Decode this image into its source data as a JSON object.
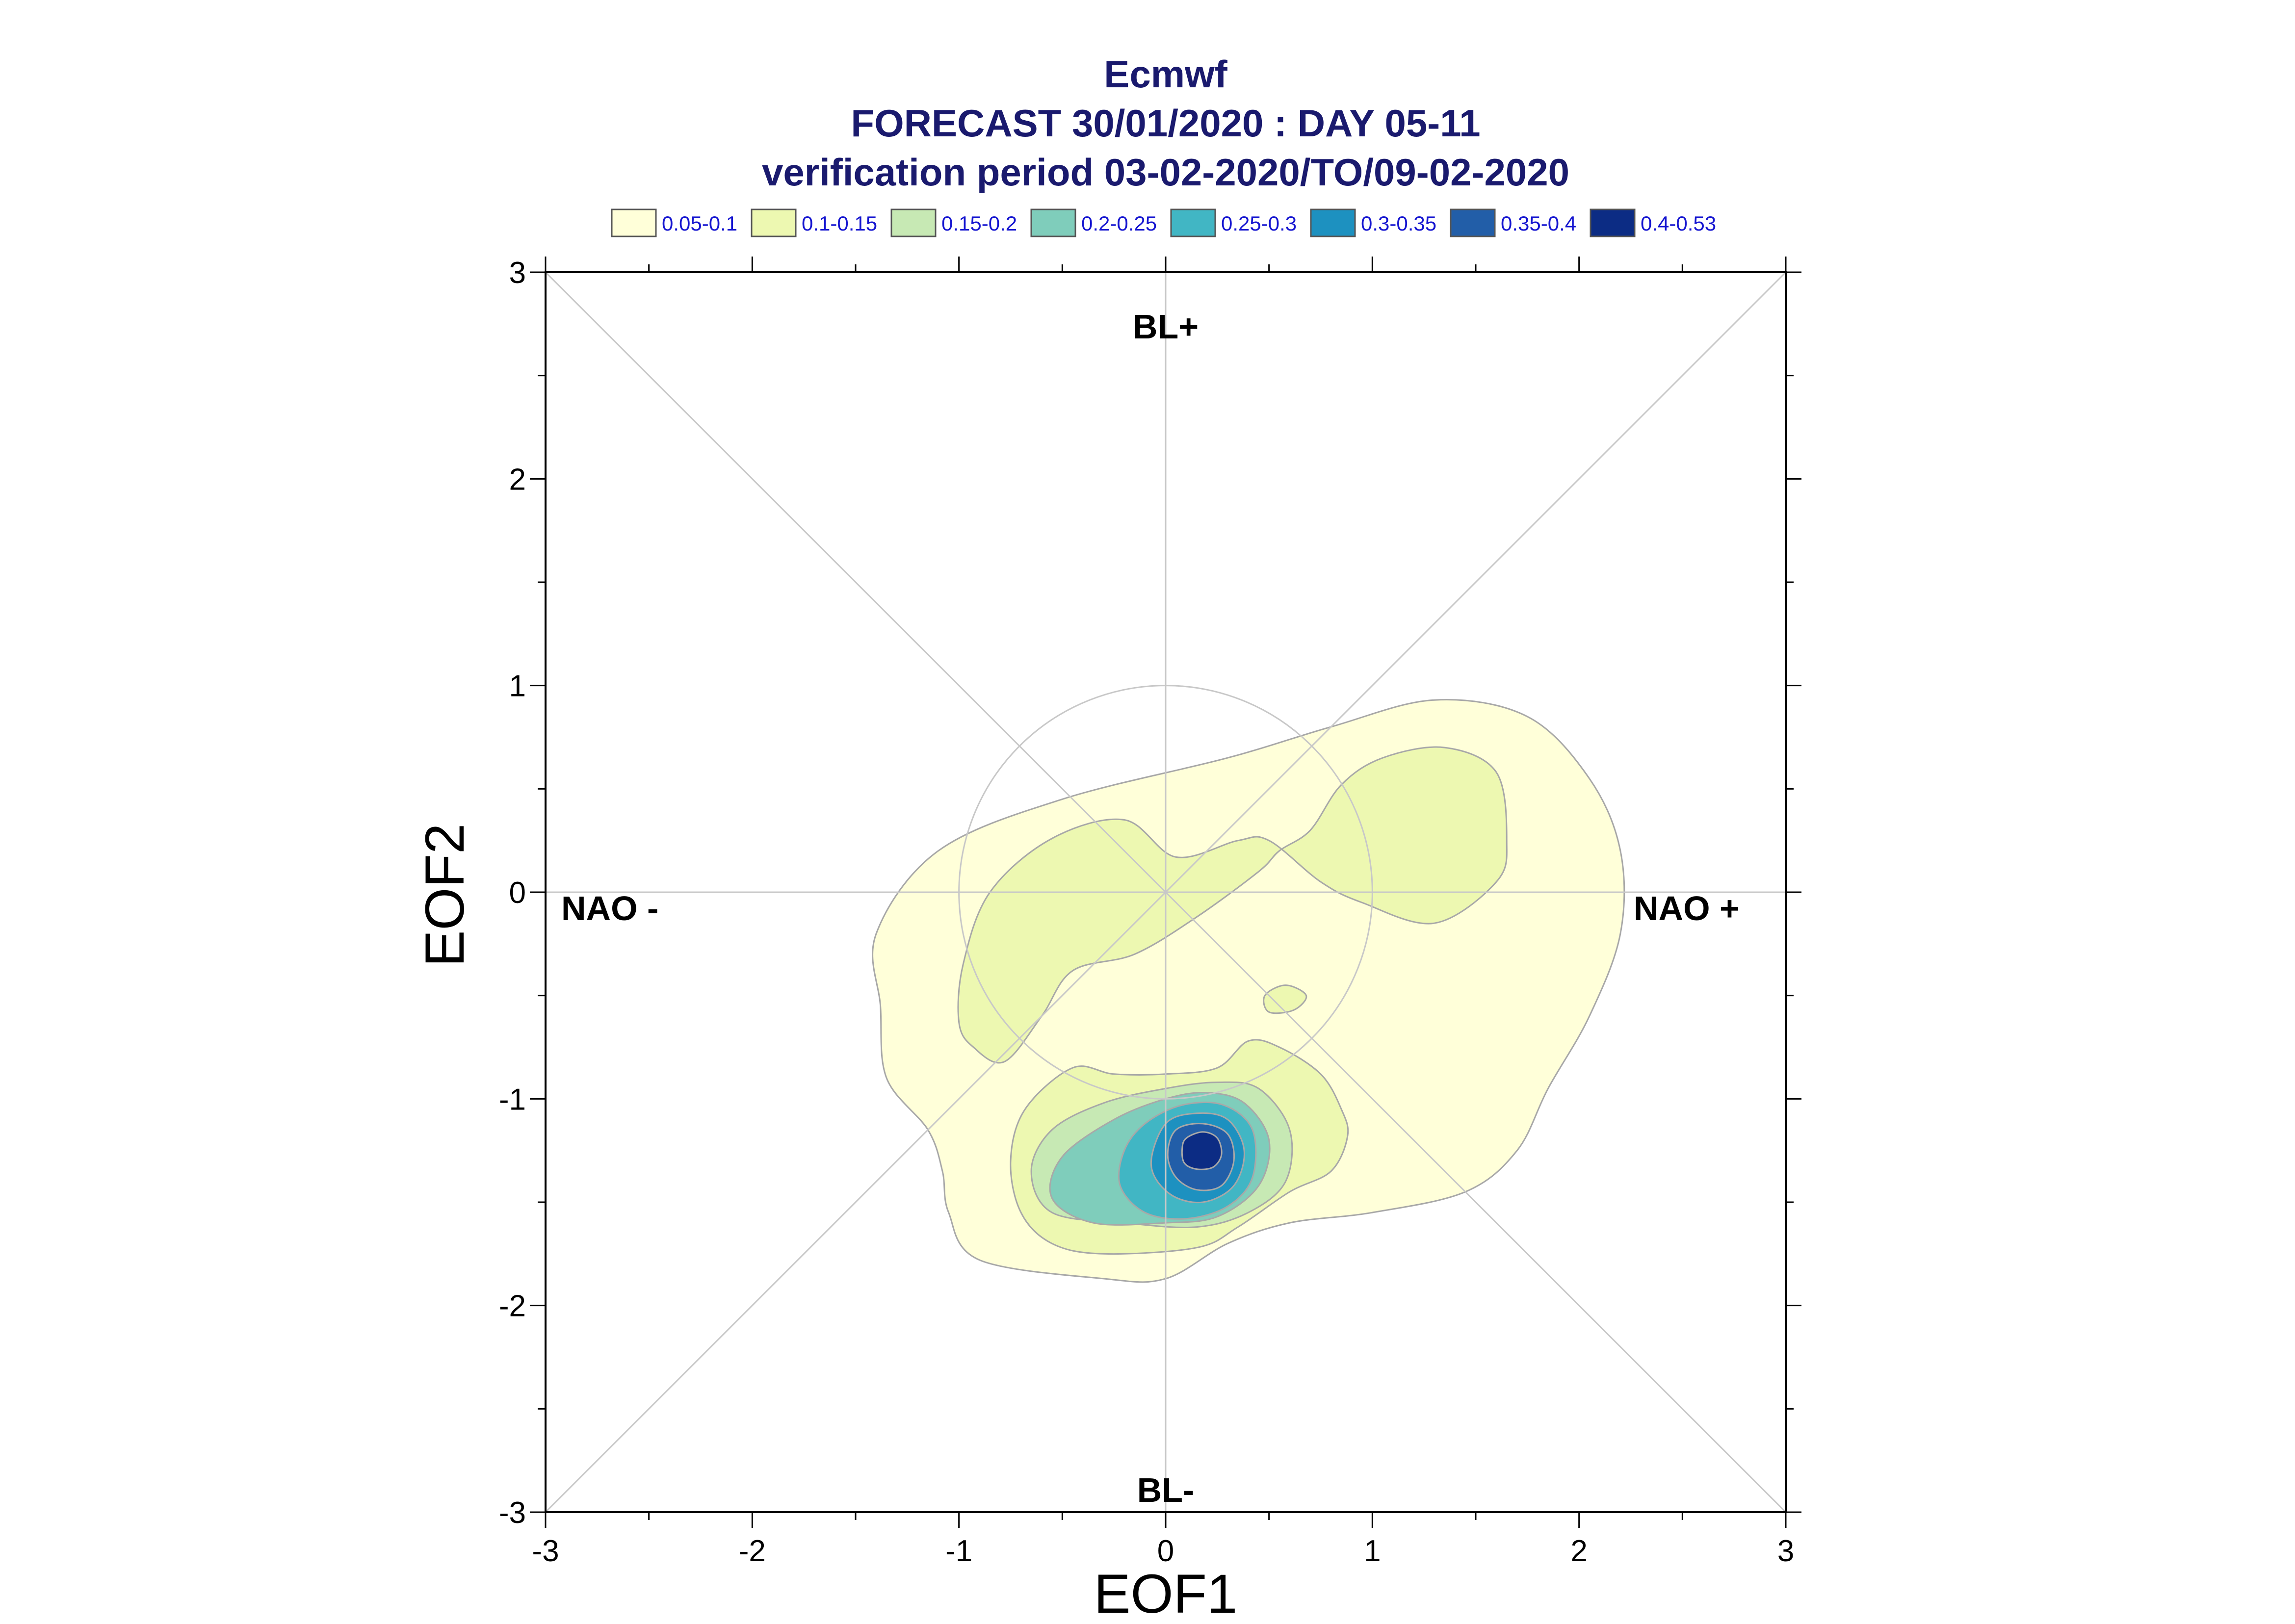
{
  "chart_data": {
    "type": "contour",
    "title_lines": [
      "Ecmwf",
      "FORECAST 30/01/2020 : DAY 05-11",
      "verification period 03-02-2020/TO/09-02-2020"
    ],
    "xlabel": "EOF1",
    "ylabel": "EOF2",
    "xlim": [
      -3,
      3
    ],
    "ylim": [
      -3,
      3
    ],
    "x_ticks": [
      "-3",
      "-2",
      "-1",
      "0",
      "1",
      "2",
      "3"
    ],
    "y_ticks": [
      "3",
      "2",
      "1",
      "0",
      "-1",
      "-2",
      "-3"
    ],
    "legend": [
      {
        "label": "0.05-0.1",
        "color": "#ffffd9"
      },
      {
        "label": "0.1-0.15",
        "color": "#edf8b1"
      },
      {
        "label": "0.15-0.2",
        "color": "#c7e9b4"
      },
      {
        "label": "0.2-0.25",
        "color": "#7fcdbb"
      },
      {
        "label": "0.25-0.3",
        "color": "#41b6c4"
      },
      {
        "label": "0.3-0.35",
        "color": "#1d91c0"
      },
      {
        "label": "0.35-0.4",
        "color": "#225ea8"
      },
      {
        "label": "0.4-0.53",
        "color": "#0c2c84"
      }
    ],
    "regime_labels": {
      "top": "BL+",
      "bottom": "BL-",
      "left": "NAO -",
      "right": "NAO +"
    },
    "reference_circle_radius": 1,
    "density_peak": {
      "x": 0.18,
      "y": -1.25,
      "value_range": "0.4-0.53"
    },
    "contours": [
      {
        "level": "0.05-0.1",
        "points": [
          [
            -1.4,
            -0.2
          ],
          [
            -1.1,
            0.2
          ],
          [
            -0.5,
            0.45
          ],
          [
            0.3,
            0.65
          ],
          [
            0.8,
            0.8
          ],
          [
            1.3,
            0.93
          ],
          [
            1.75,
            0.85
          ],
          [
            2.05,
            0.55
          ],
          [
            2.2,
            0.2
          ],
          [
            2.2,
            -0.2
          ],
          [
            2.05,
            -0.6
          ],
          [
            1.85,
            -0.95
          ],
          [
            1.7,
            -1.25
          ],
          [
            1.45,
            -1.45
          ],
          [
            1.0,
            -1.55
          ],
          [
            0.6,
            -1.6
          ],
          [
            0.3,
            -1.7
          ],
          [
            0.0,
            -1.87
          ],
          [
            -0.3,
            -1.87
          ],
          [
            -0.9,
            -1.78
          ],
          [
            -1.05,
            -1.55
          ],
          [
            -1.08,
            -1.35
          ],
          [
            -1.15,
            -1.15
          ],
          [
            -1.35,
            -0.9
          ],
          [
            -1.38,
            -0.55
          ]
        ]
      },
      {
        "level": "0.1-0.15",
        "points": [
          [
            -0.93,
            -0.75
          ],
          [
            -0.78,
            -0.82
          ],
          [
            -0.6,
            -0.6
          ],
          [
            -0.45,
            -0.38
          ],
          [
            -0.15,
            -0.3
          ],
          [
            0.15,
            -0.12
          ],
          [
            0.45,
            0.1
          ],
          [
            0.55,
            0.2
          ],
          [
            0.7,
            0.3
          ],
          [
            0.85,
            0.52
          ],
          [
            1.05,
            0.65
          ],
          [
            1.35,
            0.7
          ],
          [
            1.6,
            0.58
          ],
          [
            1.65,
            0.25
          ],
          [
            1.6,
            0.05
          ],
          [
            1.3,
            -0.15
          ],
          [
            0.95,
            -0.05
          ],
          [
            0.75,
            0.05
          ],
          [
            0.5,
            0.25
          ],
          [
            0.35,
            0.25
          ],
          [
            0.05,
            0.17
          ],
          [
            -0.2,
            0.35
          ],
          [
            -0.55,
            0.26
          ],
          [
            -0.85,
            0.0
          ],
          [
            -0.98,
            -0.35
          ],
          [
            -1.0,
            -0.63
          ]
        ]
      },
      {
        "level": "0.1-0.15",
        "points": [
          [
            0.48,
            -0.5
          ],
          [
            0.58,
            -0.45
          ],
          [
            0.68,
            -0.5
          ],
          [
            0.62,
            -0.57
          ],
          [
            0.5,
            -0.58
          ]
        ]
      },
      {
        "level": "0.1-0.15",
        "points": [
          [
            -0.45,
            -0.85
          ],
          [
            -0.25,
            -0.88
          ],
          [
            0.0,
            -0.88
          ],
          [
            0.25,
            -0.85
          ],
          [
            0.4,
            -0.72
          ],
          [
            0.55,
            -0.75
          ],
          [
            0.75,
            -0.88
          ],
          [
            0.85,
            -1.05
          ],
          [
            0.88,
            -1.18
          ],
          [
            0.8,
            -1.35
          ],
          [
            0.6,
            -1.45
          ],
          [
            0.35,
            -1.62
          ],
          [
            0.15,
            -1.72
          ],
          [
            -0.3,
            -1.75
          ],
          [
            -0.55,
            -1.7
          ],
          [
            -0.7,
            -1.55
          ],
          [
            -0.75,
            -1.3
          ],
          [
            -0.68,
            -1.05
          ]
        ]
      },
      {
        "level": "0.15-0.2",
        "points": [
          [
            -0.3,
            -1.02
          ],
          [
            0.0,
            -0.95
          ],
          [
            0.25,
            -0.92
          ],
          [
            0.45,
            -0.95
          ],
          [
            0.6,
            -1.15
          ],
          [
            0.58,
            -1.4
          ],
          [
            0.4,
            -1.55
          ],
          [
            0.15,
            -1.62
          ],
          [
            -0.2,
            -1.6
          ],
          [
            -0.55,
            -1.55
          ],
          [
            -0.65,
            -1.35
          ],
          [
            -0.55,
            -1.15
          ]
        ]
      },
      {
        "level": "0.2-0.25",
        "points": [
          [
            -0.25,
            -1.1
          ],
          [
            0.0,
            -1.0
          ],
          [
            0.2,
            -0.97
          ],
          [
            0.38,
            -1.02
          ],
          [
            0.5,
            -1.2
          ],
          [
            0.45,
            -1.42
          ],
          [
            0.25,
            -1.57
          ],
          [
            0.0,
            -1.6
          ],
          [
            -0.35,
            -1.6
          ],
          [
            -0.55,
            -1.48
          ],
          [
            -0.5,
            -1.28
          ]
        ]
      },
      {
        "level": "0.25-0.3",
        "points": [
          [
            -0.1,
            -1.12
          ],
          [
            0.08,
            -1.03
          ],
          [
            0.28,
            -1.03
          ],
          [
            0.42,
            -1.15
          ],
          [
            0.42,
            -1.38
          ],
          [
            0.3,
            -1.52
          ],
          [
            0.1,
            -1.58
          ],
          [
            -0.1,
            -1.55
          ],
          [
            -0.22,
            -1.42
          ],
          [
            -0.2,
            -1.25
          ]
        ]
      },
      {
        "level": "0.3-0.35",
        "points": [
          [
            0.0,
            -1.12
          ],
          [
            0.15,
            -1.07
          ],
          [
            0.3,
            -1.1
          ],
          [
            0.38,
            -1.25
          ],
          [
            0.33,
            -1.42
          ],
          [
            0.18,
            -1.5
          ],
          [
            0.02,
            -1.46
          ],
          [
            -0.07,
            -1.32
          ]
        ]
      },
      {
        "level": "0.35-0.4",
        "points": [
          [
            0.05,
            -1.15
          ],
          [
            0.18,
            -1.12
          ],
          [
            0.3,
            -1.17
          ],
          [
            0.33,
            -1.3
          ],
          [
            0.27,
            -1.42
          ],
          [
            0.15,
            -1.44
          ],
          [
            0.05,
            -1.38
          ],
          [
            0.01,
            -1.27
          ]
        ]
      },
      {
        "level": "0.4-0.53",
        "points": [
          [
            0.1,
            -1.19
          ],
          [
            0.18,
            -1.16
          ],
          [
            0.25,
            -1.19
          ],
          [
            0.27,
            -1.27
          ],
          [
            0.23,
            -1.33
          ],
          [
            0.15,
            -1.34
          ],
          [
            0.09,
            -1.31
          ],
          [
            0.08,
            -1.24
          ]
        ]
      }
    ]
  }
}
